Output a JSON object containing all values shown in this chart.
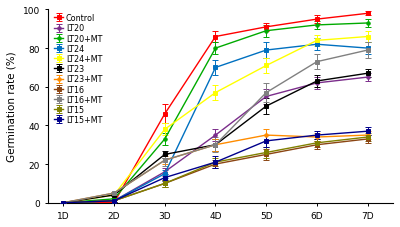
{
  "x_labels": [
    "1D",
    "2D",
    "3D",
    "4D",
    "5D",
    "6D",
    "7D"
  ],
  "x_values": [
    1,
    2,
    3,
    4,
    5,
    6,
    7
  ],
  "series": [
    {
      "label": "Control",
      "color": "#FF0000",
      "marker": "s",
      "values": [
        0,
        0,
        46,
        86,
        91,
        95,
        98
      ],
      "errors": [
        0,
        0.5,
        5,
        3,
        2,
        2,
        1
      ]
    },
    {
      "label": "LT20",
      "color": "#7B2D8B",
      "marker": "o",
      "values": [
        0,
        1,
        16,
        35,
        55,
        62,
        65
      ],
      "errors": [
        0,
        0.5,
        2,
        3,
        4,
        3,
        2
      ]
    },
    {
      "label": "LT20+MT",
      "color": "#00AA00",
      "marker": "o",
      "values": [
        0,
        2,
        33,
        80,
        89,
        92,
        93
      ],
      "errors": [
        0,
        0.5,
        3,
        3,
        3,
        2,
        2
      ]
    },
    {
      "label": "LT24",
      "color": "#0070C0",
      "marker": "s",
      "values": [
        0,
        1,
        15,
        70,
        79,
        82,
        80
      ],
      "errors": [
        0,
        0.5,
        2,
        4,
        4,
        3,
        3
      ]
    },
    {
      "label": "LT24+MT",
      "color": "#FFFF00",
      "marker": "s",
      "values": [
        0,
        4,
        38,
        57,
        71,
        84,
        86
      ],
      "errors": [
        0,
        0.5,
        3,
        4,
        4,
        3,
        3
      ]
    },
    {
      "label": "LT23",
      "color": "#000000",
      "marker": "s",
      "values": [
        0,
        4,
        25,
        30,
        50,
        63,
        67
      ],
      "errors": [
        0,
        0.5,
        2,
        3,
        4,
        3,
        2
      ]
    },
    {
      "label": "LT23+MT",
      "color": "#FF8C00",
      "marker": "o",
      "values": [
        0,
        5,
        22,
        30,
        35,
        34,
        35
      ],
      "errors": [
        0,
        0.5,
        2,
        3,
        3,
        2,
        2
      ]
    },
    {
      "label": "LT16",
      "color": "#8B4513",
      "marker": "s",
      "values": [
        0,
        1,
        10,
        20,
        25,
        30,
        33
      ],
      "errors": [
        0,
        0.5,
        2,
        2,
        3,
        2,
        2
      ]
    },
    {
      "label": "LT16+MT",
      "color": "#808080",
      "marker": "s",
      "values": [
        0,
        5,
        22,
        30,
        57,
        73,
        79
      ],
      "errors": [
        0,
        0.5,
        3,
        4,
        5,
        4,
        4
      ]
    },
    {
      "label": "LT15",
      "color": "#808000",
      "marker": "s",
      "values": [
        0,
        1,
        10,
        21,
        26,
        31,
        34
      ],
      "errors": [
        0,
        0.5,
        2,
        2,
        3,
        2,
        2
      ]
    },
    {
      "label": "LT15+MT",
      "color": "#00008B",
      "marker": "s",
      "values": [
        0,
        1,
        13,
        21,
        32,
        35,
        37
      ],
      "errors": [
        0,
        0.5,
        2,
        3,
        3,
        2,
        2
      ]
    }
  ],
  "ylabel": "Germination rate (%)",
  "ylim": [
    0,
    100
  ],
  "yticks": [
    0,
    20,
    40,
    60,
    80,
    100
  ],
  "background_color": "#FFFFFF",
  "legend_fontsize": 5.8,
  "axis_fontsize": 7.5,
  "tick_fontsize": 6.5
}
